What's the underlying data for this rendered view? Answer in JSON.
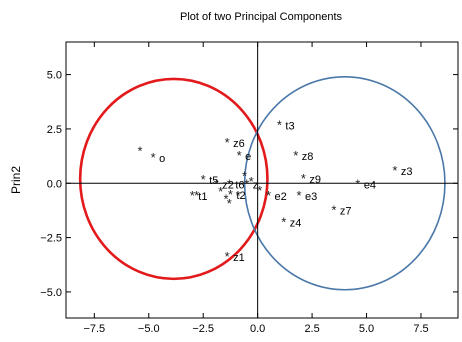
{
  "chart_data": {
    "type": "scatter",
    "title": "Plot of two Principal Components",
    "xlabel": "",
    "ylabel": "Prin2",
    "xlim": [
      -8.8,
      9.2
    ],
    "ylim": [
      -6.2,
      6.5
    ],
    "xticks": [
      -7.5,
      -5.0,
      -2.5,
      0.0,
      2.5,
      5.0,
      7.5
    ],
    "xtick_labels": [
      "−7.5",
      "−5.0",
      "−2.5",
      "0.0",
      "2.5",
      "5.0",
      "7.5"
    ],
    "yticks": [
      5.0,
      2.5,
      0.0,
      -2.5,
      -5.0
    ],
    "ytick_labels": [
      "5.0",
      "2.5",
      "0.0",
      "−2.5",
      "−5.0"
    ],
    "grid": false,
    "reference_lines": {
      "x": 0,
      "y": 0
    },
    "marker": "*",
    "points": [
      {
        "label": "",
        "x": -5.4,
        "y": 1.5
      },
      {
        "label": "o",
        "x": -4.8,
        "y": 1.2
      },
      {
        "label": "z6",
        "x": -1.4,
        "y": 1.9
      },
      {
        "label": "e",
        "x": -0.85,
        "y": 1.3
      },
      {
        "label": "t3",
        "x": 1.0,
        "y": 2.7
      },
      {
        "label": "z8",
        "x": 1.75,
        "y": 1.3
      },
      {
        "label": "z3",
        "x": 6.3,
        "y": 0.6
      },
      {
        "label": "t5",
        "x": -2.5,
        "y": 0.2
      },
      {
        "label": "z2",
        "x": -1.9,
        "y": 0.0
      },
      {
        "label": "t6",
        "x": -1.3,
        "y": 0.0
      },
      {
        "label": "z",
        "x": -0.5,
        "y": 0.0
      },
      {
        "label": "t1",
        "x": -3.0,
        "y": -0.55
      },
      {
        "label": "t2",
        "x": -1.25,
        "y": -0.5
      },
      {
        "label": "z9",
        "x": 2.1,
        "y": 0.25
      },
      {
        "label": "e4",
        "x": 4.6,
        "y": 0.0
      },
      {
        "label": "e2",
        "x": 0.5,
        "y": -0.55
      },
      {
        "label": "e3",
        "x": 1.9,
        "y": -0.55
      },
      {
        "label": "z7",
        "x": 3.5,
        "y": -1.2
      },
      {
        "label": "z4",
        "x": 1.2,
        "y": -1.75
      },
      {
        "label": "z1",
        "x": -1.4,
        "y": -3.35
      }
    ],
    "extra_stars": [
      {
        "x": -2.8,
        "y": -0.55
      },
      {
        "x": -1.7,
        "y": -0.35
      },
      {
        "x": -1.45,
        "y": -0.7
      },
      {
        "x": -1.3,
        "y": -0.9
      },
      {
        "x": -0.9,
        "y": -0.55
      },
      {
        "x": -0.6,
        "y": 0.35
      },
      {
        "x": -0.3,
        "y": 0.1
      },
      {
        "x": 0.1,
        "y": -0.3
      }
    ],
    "ellipses": [
      {
        "cx": -3.85,
        "cy": 0.2,
        "rx": 4.3,
        "ry": 4.6,
        "color": "#e31a1c"
      },
      {
        "cx": 4.0,
        "cy": 0.0,
        "rx": 4.6,
        "ry": 4.9,
        "color": "#4a78a8"
      }
    ]
  }
}
